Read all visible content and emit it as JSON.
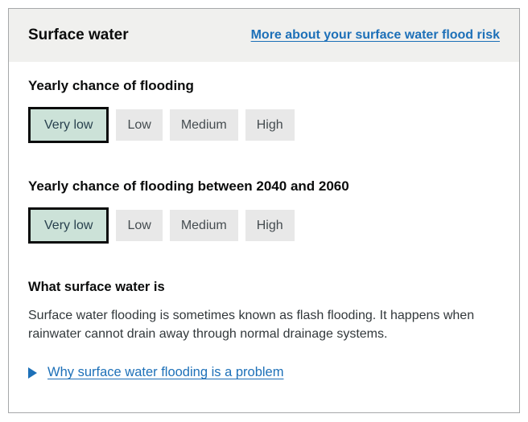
{
  "header": {
    "title": "Surface water",
    "more_link": "More about your surface water flood risk"
  },
  "risk_sections": [
    {
      "heading": "Yearly chance of flooding",
      "selected": "Very low",
      "options": [
        "Very low",
        "Low",
        "Medium",
        "High"
      ]
    },
    {
      "heading": "Yearly chance of flooding between 2040 and 2060",
      "selected": "Very low",
      "options": [
        "Very low",
        "Low",
        "Medium",
        "High"
      ]
    }
  ],
  "about": {
    "heading": "What surface water is",
    "body": "Surface water flooding is sometimes known as flash flooding. It happens when rainwater cannot drain away through normal drainage systems."
  },
  "details": {
    "summary": "Why surface water flooding is a problem",
    "expanded": false,
    "marker_icon": "right-pointing-triangle"
  },
  "colors": {
    "header_bg": "#f0f0ee",
    "card_border": "#a6a8aa",
    "link_blue": "#1d70b8",
    "chip_bg": "#e8e8e8",
    "chip_text": "#454c50",
    "chip_selected_bg": "#cce2d8",
    "chip_selected_border": "#0b0c0c",
    "chip_selected_text": "#28414e",
    "heading_text": "#0b0c0c",
    "body_text": "#32383b"
  }
}
